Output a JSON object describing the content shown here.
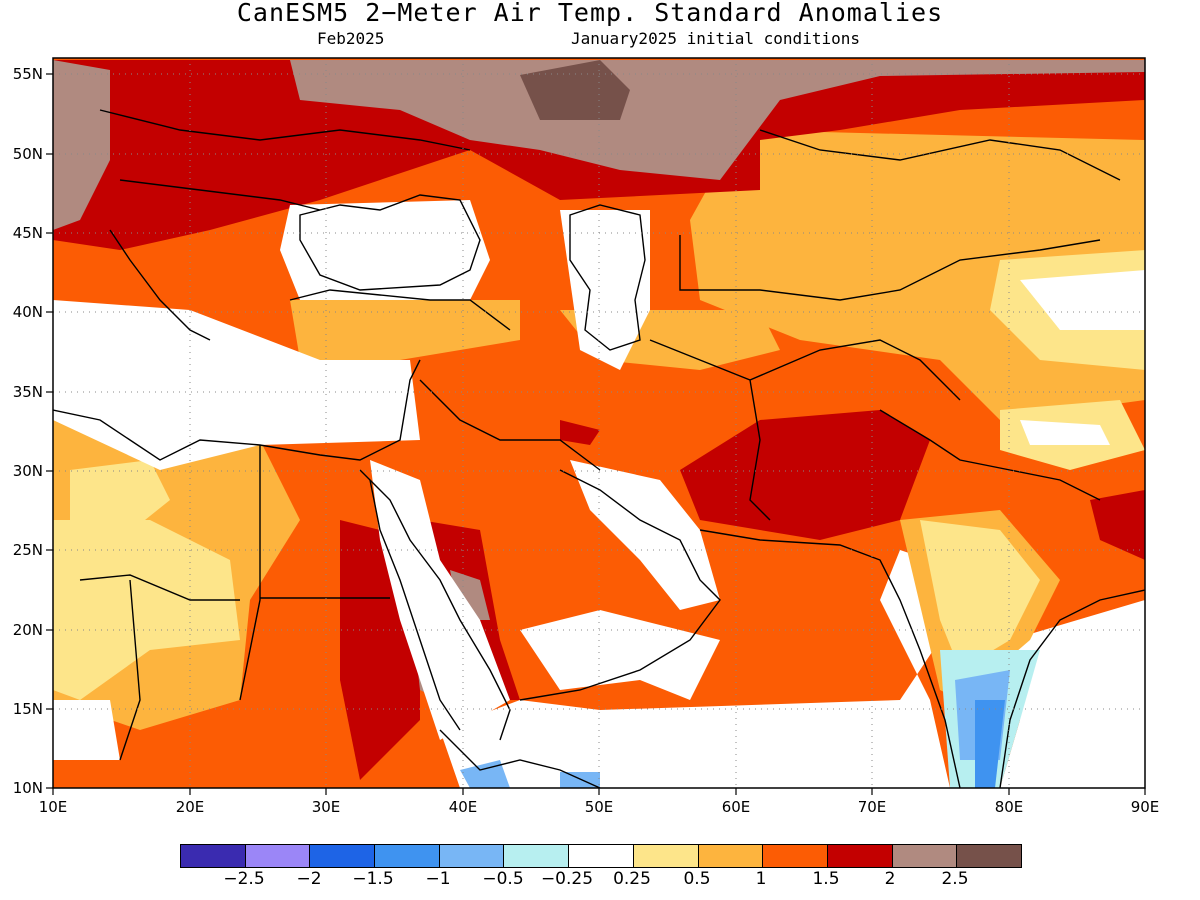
{
  "title": "CanESM5 2−Meter Air Temp. Standard Anomalies",
  "subtitle_left": "Feb2025",
  "subtitle_right": "January2025 initial conditions",
  "axes": {
    "lon_labels": [
      "10E",
      "20E",
      "30E",
      "40E",
      "50E",
      "60E",
      "70E",
      "80E",
      "90E"
    ],
    "lat_labels": [
      "55N",
      "50N",
      "45N",
      "40N",
      "35N",
      "30N",
      "25N",
      "20N",
      "15N",
      "10N"
    ],
    "lon_range": [
      10,
      90
    ],
    "lat_range": [
      10,
      56
    ],
    "grid": "dotted"
  },
  "colorbar": {
    "colors": [
      "#3a2bb0",
      "#9b86f7",
      "#1e64e6",
      "#3f93f0",
      "#78b6f5",
      "#b7eff0",
      "#ffffff",
      "#fde58a",
      "#fdb43e",
      "#fc5c04",
      "#c30000",
      "#b08a80",
      "#76514a"
    ],
    "labels": [
      "−2.5",
      "−2",
      "−1.5",
      "−1",
      "−0.5",
      "−0.25",
      "0.25",
      "0.5",
      "1",
      "1.5",
      "2",
      "2.5"
    ]
  },
  "legend_palette": {
    "neg_extreme": "#3a2bb0",
    "white": "#ffffff",
    "pale_yellow": "#fde58a",
    "light_orange": "#fdb43e",
    "orange": "#fc5c04",
    "dark_red": "#c30000",
    "taupe": "#b08a80",
    "dark_brown": "#76514a",
    "light_blue": "#78b6f5",
    "blue": "#3f93f0",
    "cyan": "#b7eff0"
  }
}
